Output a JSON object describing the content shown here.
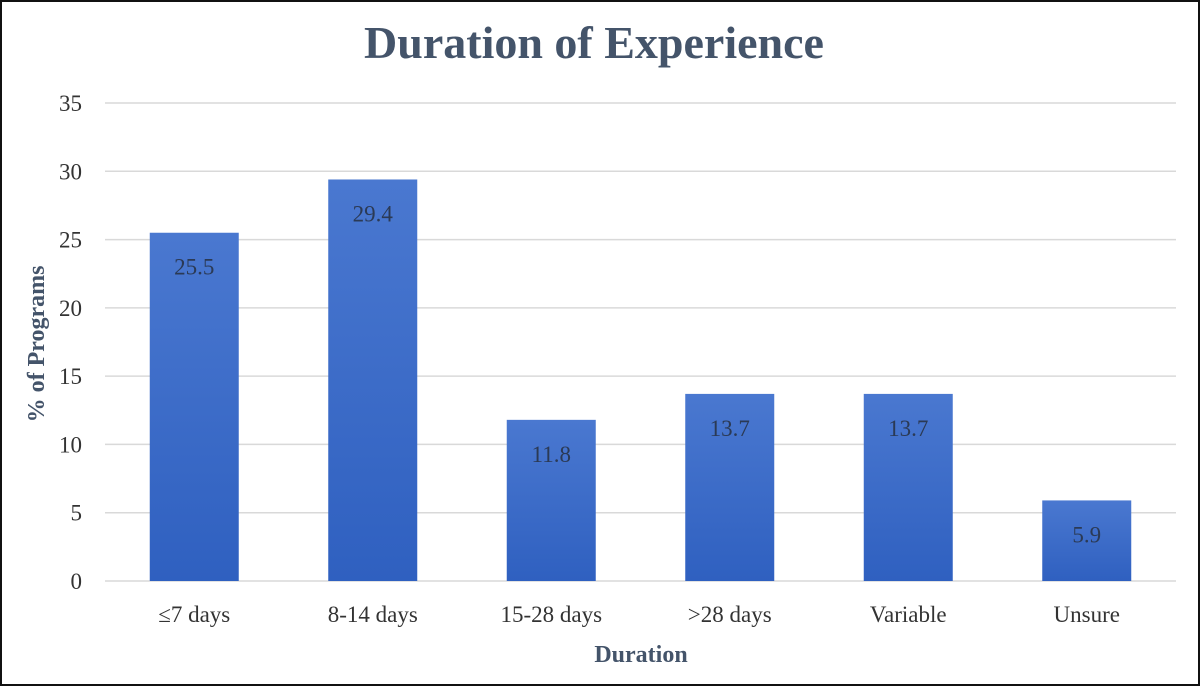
{
  "chart_data": {
    "type": "bar",
    "title": "Duration of Experience",
    "xlabel": "Duration",
    "ylabel": "% of Programs",
    "categories": [
      "≤7 days",
      "8-14 days",
      "15-28 days",
      ">28 days",
      "Variable",
      "Unsure"
    ],
    "values": [
      25.5,
      29.4,
      11.8,
      13.7,
      13.7,
      5.9
    ],
    "data_labels": [
      "25.5",
      "29.4",
      "11.8",
      "13.7",
      "13.7",
      "5.9"
    ],
    "ylim": [
      0,
      35
    ],
    "yticks": [
      0,
      5,
      10,
      15,
      20,
      25,
      30,
      35
    ],
    "grid": true,
    "legend": "none",
    "colors": {
      "bar_top": "#4a78d0",
      "bar_bottom": "#2f60c0",
      "title": "#44546a"
    }
  }
}
